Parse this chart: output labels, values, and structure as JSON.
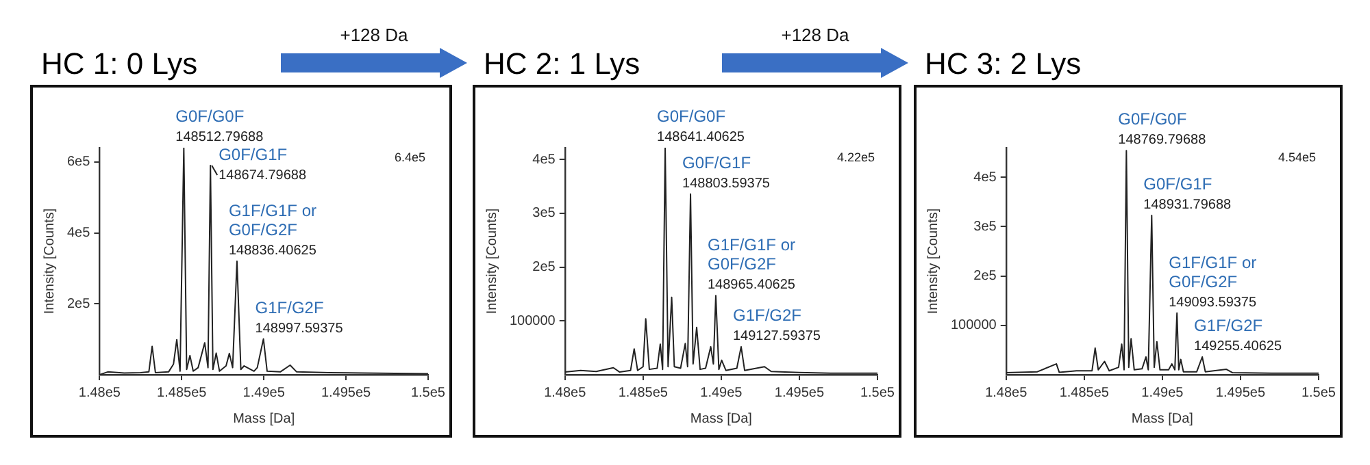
{
  "chart_data": [
    {
      "type": "line",
      "title": "HC 1: 0 Lys",
      "xlabel": "Mass [Da]",
      "ylabel": "Intensity [Counts]",
      "xlim": [
        148000,
        150000
      ],
      "xticks": [
        {
          "value": 148000,
          "label": "1.48e5"
        },
        {
          "value": 148500,
          "label": "1.485e5"
        },
        {
          "value": 149000,
          "label": "1.49e5"
        },
        {
          "value": 149500,
          "label": "1.495e5"
        },
        {
          "value": 150000,
          "label": "1.5e5"
        }
      ],
      "ylim": [
        0,
        640000
      ],
      "yticks": [
        {
          "value": 200000,
          "label": "2e5"
        },
        {
          "value": 400000,
          "label": "4e5"
        },
        {
          "value": 600000,
          "label": "6e5"
        }
      ],
      "series": [
        {
          "color": "#222222",
          "x": [
            148000,
            148050,
            148150,
            148250,
            148300,
            148320,
            148340,
            148420,
            148450,
            148470,
            148490,
            148512.79688,
            148530,
            148550,
            148570,
            148600,
            148640,
            148660,
            148674.79688,
            148690,
            148710,
            148730,
            148770,
            148790,
            148810,
            148836.40625,
            148860,
            148880,
            148940,
            148960,
            148997.59375,
            149020,
            149100,
            149160,
            149200,
            149400,
            149600,
            149800,
            150000
          ],
          "values": [
            0,
            8000,
            5000,
            6000,
            8000,
            80000,
            6000,
            8000,
            30000,
            99000,
            10000,
            640000,
            15000,
            54000,
            10000,
            20000,
            90000,
            20000,
            590000,
            15000,
            61000,
            10000,
            25000,
            60000,
            20000,
            320000,
            15000,
            25000,
            10000,
            20000,
            101000,
            10000,
            8000,
            27000,
            8000,
            6000,
            5000,
            4000,
            3000
          ]
        }
      ],
      "annotations": [
        "6.4e5",
        {
          "text": "G0F/G0F\n148512.79688",
          "x": 148512.79688,
          "y": 640000
        },
        {
          "text": "G0F/G1F\n148674.79688",
          "x": 148674.79688,
          "y": 590000
        },
        {
          "text": "G1F/G1F or\nG0F/G2F\n148836.40625",
          "x": 148836.40625,
          "y": 320000
        },
        {
          "text": "G1F/G2F\n148997.59375",
          "x": 148997.59375,
          "y": 101000
        }
      ]
    },
    {
      "type": "line",
      "title": "HC 2: 1 Lys",
      "xlabel": "Mass [Da]",
      "ylabel": "Intensity [Counts]",
      "xlim": [
        148000,
        150000
      ],
      "xticks": [
        {
          "value": 148000,
          "label": "1.48e5"
        },
        {
          "value": 148500,
          "label": "1.485e5"
        },
        {
          "value": 149000,
          "label": "1.49e5"
        },
        {
          "value": 149500,
          "label": "1.495e5"
        },
        {
          "value": 150000,
          "label": "1.5e5"
        }
      ],
      "ylim": [
        0,
        422000
      ],
      "yticks": [
        100000,
        {
          "value": 200000,
          "label": "2e5"
        },
        {
          "value": 300000,
          "label": "3e5"
        },
        {
          "value": 400000,
          "label": "4e5"
        }
      ],
      "series": [
        {
          "color": "#222222",
          "x": [
            148000,
            148100,
            148200,
            148310,
            148350,
            148420,
            148443,
            148465,
            148500,
            148517,
            148540,
            148590,
            148610,
            148625,
            148641.40625,
            148660,
            148683,
            148700,
            148740,
            148770,
            148785,
            148803.59375,
            148820,
            148843,
            148865,
            148900,
            148933,
            148950,
            148965.40625,
            148985,
            149003,
            149030,
            149100,
            149127.59375,
            149150,
            149277,
            149320,
            149500,
            149700,
            150000
          ],
          "values": [
            5000,
            8000,
            6000,
            13000,
            5000,
            8000,
            48000,
            8000,
            15000,
            104000,
            10000,
            12000,
            57000,
            10000,
            422000,
            15000,
            144000,
            15000,
            12000,
            58000,
            15000,
            336000,
            20000,
            88000,
            10000,
            12000,
            52000,
            20000,
            147000,
            10000,
            27000,
            8000,
            12000,
            52000,
            8000,
            15000,
            6000,
            4000,
            3000,
            3000
          ]
        }
      ],
      "annotations": [
        "+128 Da",
        "4.22e5",
        {
          "text": "G0F/G0F\n148641.40625",
          "x": 148641.40625,
          "y": 422000
        },
        {
          "text": "G0F/G1F\n148803.59375",
          "x": 148803.59375,
          "y": 336000
        },
        {
          "text": "G1F/G1F or\nG0F/G2F\n148965.40625",
          "x": 148965.40625,
          "y": 147000
        },
        {
          "text": "G1F/G2F\n149127.59375",
          "x": 149127.59375,
          "y": 52000
        }
      ]
    },
    {
      "type": "line",
      "title": "HC 3: 2 Lys",
      "xlabel": "Mass [Da]",
      "ylabel": "Intensity [Counts]",
      "xlim": [
        148000,
        150000
      ],
      "xticks": [
        {
          "value": 148000,
          "label": "1.48e5"
        },
        {
          "value": 148500,
          "label": "1.485e5"
        },
        {
          "value": 149000,
          "label": "1.49e5"
        },
        {
          "value": 149500,
          "label": "1.495e5"
        },
        {
          "value": 150000,
          "label": "1.5e5"
        }
      ],
      "ylim": [
        0,
        460000
      ],
      "yticks": [
        100000,
        {
          "value": 200000,
          "label": "2e5"
        },
        {
          "value": 300000,
          "label": "3e5"
        },
        {
          "value": 400000,
          "label": "4e5"
        }
      ],
      "series": [
        {
          "color": "#222222",
          "x": [
            148000,
            148200,
            148322,
            148340,
            148450,
            148550,
            148570,
            148590,
            148630,
            148660,
            148720,
            148740,
            148755,
            148769.79688,
            148785,
            148800,
            148820,
            148870,
            148895,
            148910,
            148931.79688,
            148948,
            148965,
            148985,
            149040,
            149061,
            149080,
            149093.59375,
            149105,
            149118,
            149135,
            149220,
            149255.40625,
            149275,
            149410,
            149450,
            149700,
            150000
          ],
          "values": [
            4000,
            6000,
            22000,
            5000,
            8000,
            8000,
            54000,
            10000,
            27000,
            8000,
            15000,
            62000,
            10000,
            454000,
            15000,
            73000,
            10000,
            12000,
            36000,
            10000,
            323000,
            15000,
            67000,
            10000,
            10000,
            22000,
            10000,
            125000,
            10000,
            31000,
            6000,
            6000,
            36000,
            6000,
            11000,
            4000,
            3000,
            3000
          ]
        }
      ],
      "annotations": [
        "+128 Da",
        "4.54e5",
        {
          "text": "G0F/G0F\n148769.79688",
          "x": 148769.79688,
          "y": 454000
        },
        {
          "text": "G0F/G1F\n148931.79688",
          "x": 148931.79688,
          "y": 323000
        },
        {
          "text": "G1F/G1F or\nG0F/G2F\n149093.59375",
          "x": 149093.59375,
          "y": 125000
        },
        {
          "text": "G1F/G2F\n149255.40625",
          "x": 149255.40625,
          "y": 36000
        }
      ]
    }
  ]
}
